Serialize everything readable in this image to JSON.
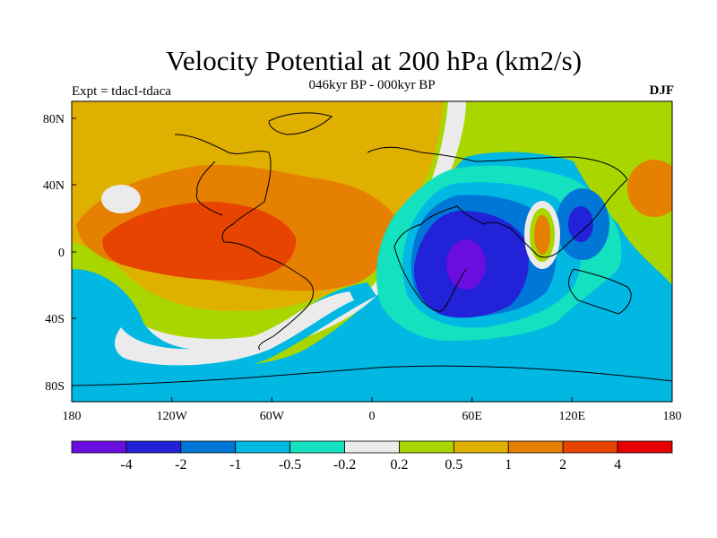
{
  "title": "Velocity Potential at 200 hPa (km2/s)",
  "subtitle": "046kyr BP - 000kyr BP",
  "left_label": "Expt = tdacI-tdaca",
  "right_label": "DJF",
  "axes": {
    "lon_ticks": [
      "180",
      "120W",
      "60W",
      "0",
      "60E",
      "120E",
      "180"
    ],
    "lat_ticks": [
      "80N",
      "40N",
      "0",
      "40S",
      "80S"
    ]
  },
  "colorbar": {
    "colors": [
      "#6a0ee0",
      "#2222d8",
      "#0077d6",
      "#00b8e2",
      "#13e1c0",
      "#ebebeb",
      "#aad600",
      "#e0b000",
      "#e58000",
      "#e64400",
      "#e60000"
    ],
    "labels": [
      "-4",
      "-2",
      "-1",
      "-0.5",
      "-0.2",
      "0.2",
      "0.5",
      "1",
      "2",
      "4"
    ]
  }
}
